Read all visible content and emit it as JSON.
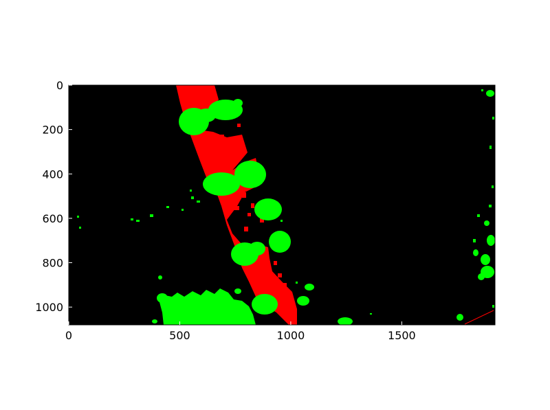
{
  "image_type": "segmentation-mask",
  "colors": {
    "background": "#000000",
    "class_red": "#ff0000",
    "class_green": "#00ff00",
    "frame": "#000000",
    "page": "#ffffff"
  },
  "axes": {
    "xlim": [
      0,
      1920
    ],
    "ylim": [
      1080,
      0
    ],
    "x_ticks": [
      {
        "value": 0,
        "label": "0"
      },
      {
        "value": 500,
        "label": "500"
      },
      {
        "value": 1000,
        "label": "1000"
      },
      {
        "value": 1500,
        "label": "1500"
      }
    ],
    "y_ticks": [
      {
        "value": 0,
        "label": "0"
      },
      {
        "value": 200,
        "label": "200"
      },
      {
        "value": 400,
        "label": "400"
      },
      {
        "value": 600,
        "label": "600"
      },
      {
        "value": 800,
        "label": "800"
      },
      {
        "value": 1000,
        "label": "1000"
      }
    ]
  }
}
